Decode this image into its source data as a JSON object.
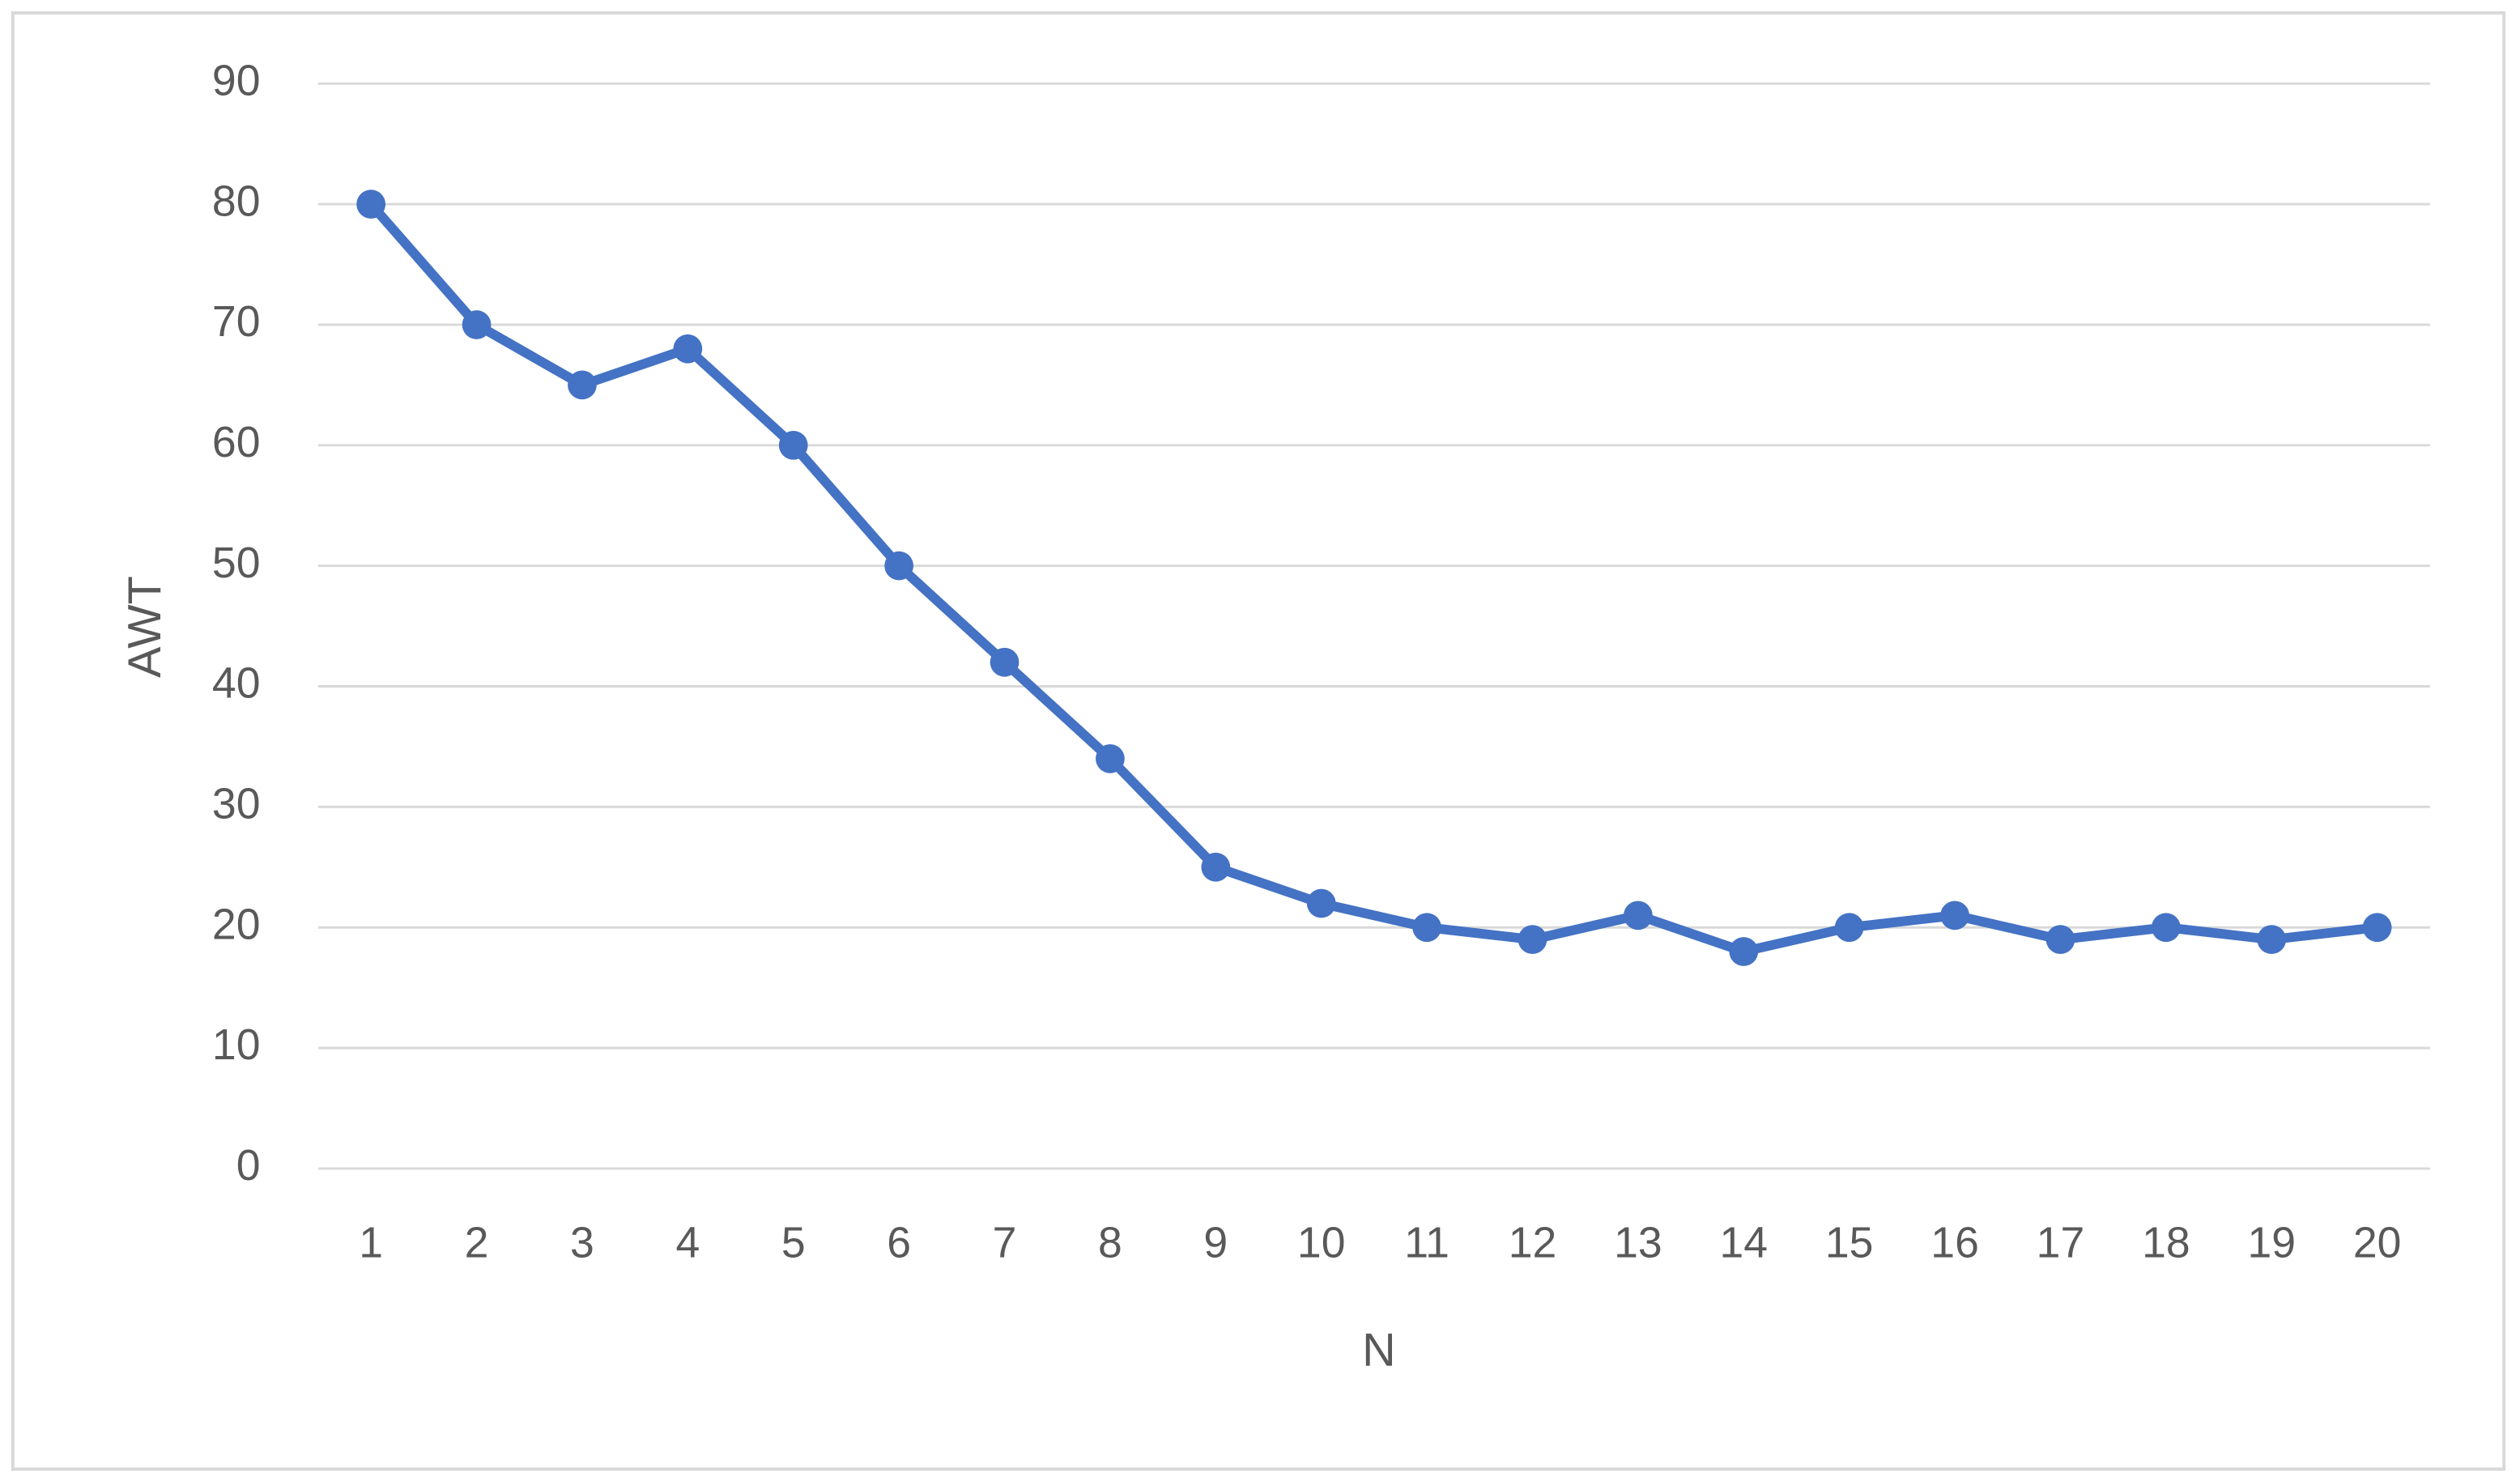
{
  "chart_data": {
    "type": "line",
    "x_label": "N",
    "y_label": "AWT",
    "categories": [
      "1",
      "2",
      "3",
      "4",
      "5",
      "6",
      "7",
      "8",
      "9",
      "10",
      "11",
      "12",
      "13",
      "14",
      "15",
      "16",
      "17",
      "18",
      "19",
      "20"
    ],
    "values": [
      80,
      70,
      65,
      68,
      60,
      50,
      42,
      34,
      25,
      22,
      20,
      19,
      21,
      18,
      20,
      21,
      19,
      20,
      19,
      20
    ],
    "color": "#4472c4",
    "ylim": [
      0,
      90
    ],
    "yticks": [
      0,
      10,
      20,
      30,
      40,
      50,
      60,
      70,
      80,
      90
    ],
    "grid": true
  }
}
